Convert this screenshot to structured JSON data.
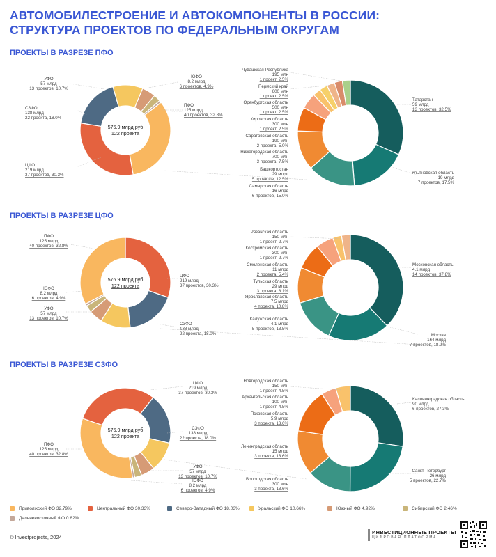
{
  "title_line1": "АВТОМОБИЛЕСТРОЕНИЕ И АВТОКОМПОНЕНТЫ В РОССИИ:",
  "title_line2": "СТРУКТУРА ПРОЕКТОВ ПО ФЕДЕРАЛЬНЫМ ОКРУГАМ",
  "footer": "© Investprojects, 2024",
  "brand": {
    "line1": "ИНВЕСТИЦИОННЫЕ ПРОЕКТЫ",
    "line2": "ЦИФРОВАЯ ПЛАТФОРМА"
  },
  "colors": {
    "pfo": "#f9b75f",
    "cfo": "#e4623f",
    "szfo": "#4e6a84",
    "ufo": "#f5c75f",
    "yufo": "#d69b76",
    "sibfo": "#c9b57a",
    "dfo": "#c4a89a",
    "t1": "#155d5d",
    "t2": "#167a74",
    "t3": "#3a9485",
    "o1": "#f08a32",
    "o2": "#ec6c16",
    "p1": "#f6a27c",
    "p2": "#f9c26b",
    "p3": "#f6d06a",
    "p4": "#efb489",
    "p5": "#d98c6a",
    "g1": "#a9d08a"
  },
  "legend": [
    {
      "label": "Приволжский ФО  32.79%",
      "color": "#f9b75f"
    },
    {
      "label": "Центральный ФО  30.33%",
      "color": "#e4623f"
    },
    {
      "label": "Северо-Западный ФО  18.03%",
      "color": "#4e6a84"
    },
    {
      "label": "Уральский ФО  10.66%",
      "color": "#f5c75f"
    },
    {
      "label": "Южный ФО  4.92%",
      "color": "#d69b76"
    },
    {
      "label": "Сибирский ФО  2.46%",
      "color": "#c9b57a"
    },
    {
      "label": "Дальневосточный ФО  0.82%",
      "color": "#c4a89a"
    }
  ],
  "chart_data": [
    {
      "type": "pie",
      "section_title": "ПРОЕКТЫ В РАЗРЕЗЕ ПФО",
      "center": {
        "line1": "576.9 млрд руб",
        "line2": "122 проекта"
      },
      "slices": [
        {
          "name": "ПФО",
          "amount": "125 млрд",
          "projects": "40 проектов, 32.8%",
          "value": 32.8,
          "color": "#f9b75f"
        },
        {
          "name": "ЦФО",
          "amount": "219 млрд",
          "projects": "37 проектов, 30.3%",
          "value": 30.3,
          "color": "#e4623f"
        },
        {
          "name": "СЗФО",
          "amount": "138 млрд",
          "projects": "22 проекта, 18.0%",
          "value": 18.0,
          "color": "#4e6a84"
        },
        {
          "name": "УФО",
          "amount": "57 млрд",
          "projects": "13 проектов, 10.7%",
          "value": 10.7,
          "color": "#f5c75f"
        },
        {
          "name": "ЮФО",
          "amount": "8.2 млрд",
          "projects": "6 проектов, 4.9%",
          "value": 4.9,
          "color": "#d69b76"
        },
        {
          "name": "СФО",
          "value": 2.5,
          "color": "#c9b57a"
        },
        {
          "name": "ДФО",
          "value": 0.8,
          "color": "#c4a89a"
        }
      ],
      "breakdown": [
        {
          "name": "Татарстан",
          "amount": "59 млрд",
          "projects": "13 проектов, 32.5%",
          "value": 32.5,
          "color": "#155d5d"
        },
        {
          "name": "Ульяновская область",
          "amount": "19 млрд",
          "projects": "7 проектов, 17.5%",
          "value": 17.5,
          "color": "#167a74"
        },
        {
          "name": "Самарская область",
          "amount": "16 млрд",
          "projects": "6 проектов, 15.0%",
          "value": 15.0,
          "color": "#3a9485"
        },
        {
          "name": "Башкортостан",
          "amount": "29 млрд",
          "projects": "5 проектов, 12.5%",
          "value": 12.5,
          "color": "#f08a32"
        },
        {
          "name": "Нижегородская область",
          "amount": "700 млн",
          "projects": "3 проекта, 7.5%",
          "value": 7.5,
          "color": "#ec6c16"
        },
        {
          "name": "Саратовская область",
          "amount": "190 млн",
          "projects": "2 проекта, 5.0%",
          "value": 5.0,
          "color": "#f6a27c"
        },
        {
          "name": "Кировская область",
          "amount": "300 млн",
          "projects": "1 проект, 2.5%",
          "value": 2.5,
          "color": "#f9c26b"
        },
        {
          "name": "Оренбургская область",
          "amount": "500 млн",
          "projects": "1 проект, 2.5%",
          "value": 2.5,
          "color": "#f6d06a"
        },
        {
          "name": "Пермский край",
          "amount": "600 млн",
          "projects": "1 проект, 2.5%",
          "value": 2.5,
          "color": "#efb489"
        },
        {
          "name": "Чувашская Республика",
          "amount": "195 млн",
          "projects": "1 проект, 2.5%",
          "value": 2.5,
          "color": "#d98c6a"
        },
        {
          "name": "",
          "value": 2.5,
          "color": "#a9d08a"
        }
      ]
    },
    {
      "type": "pie",
      "section_title": "ПРОЕКТЫ В РАЗРЕЗЕ ЦФО",
      "center": {
        "line1": "576.9 млрд руб",
        "line2": "122 проекта"
      },
      "slices": [
        {
          "name": "ЦФО",
          "amount": "219 млрд",
          "projects": "37 проектов, 30.3%",
          "value": 30.3,
          "color": "#e4623f"
        },
        {
          "name": "СЗФО",
          "amount": "138 млрд",
          "projects": "22 проекта, 18.0%",
          "value": 18.0,
          "color": "#4e6a84"
        },
        {
          "name": "УФО",
          "amount": "57 млрд",
          "projects": "13 проектов, 10.7%",
          "value": 10.7,
          "color": "#f5c75f"
        },
        {
          "name": "ЮФО",
          "amount": "8.2 млрд",
          "projects": "6 проектов, 4.9%",
          "value": 4.9,
          "color": "#d69b76"
        },
        {
          "name": "СФО",
          "value": 2.5,
          "color": "#c9b57a"
        },
        {
          "name": "ДФО",
          "value": 0.8,
          "color": "#c4a89a"
        },
        {
          "name": "ПФО",
          "amount": "125 млрд",
          "projects": "40 проектов, 32.8%",
          "value": 32.8,
          "color": "#f9b75f"
        }
      ],
      "breakdown": [
        {
          "name": "Московская область",
          "amount": "4.1 млрд",
          "projects": "14 проектов, 37.8%",
          "value": 37.8,
          "color": "#155d5d"
        },
        {
          "name": "Москва",
          "amount": "164 млрд",
          "projects": "7 проектов, 18.9%",
          "value": 18.9,
          "color": "#167a74"
        },
        {
          "name": "Калужская область",
          "amount": "4.1 млрд",
          "projects": "5 проектов, 13.5%",
          "value": 13.5,
          "color": "#3a9485"
        },
        {
          "name": "Ярославская область",
          "amount": "7.5 млрд",
          "projects": "4 проекта, 10.8%",
          "value": 10.8,
          "color": "#f08a32"
        },
        {
          "name": "Тульская область",
          "amount": "29 млрд",
          "projects": "3 проекта, 8.1%",
          "value": 8.1,
          "color": "#ec6c16"
        },
        {
          "name": "Смоленская область",
          "amount": "11 млрд",
          "projects": "2 проекта, 5.4%",
          "value": 5.4,
          "color": "#f6a27c"
        },
        {
          "name": "Костромская область",
          "amount": "300 млн",
          "projects": "1 проект, 2.7%",
          "value": 2.7,
          "color": "#f9c26b"
        },
        {
          "name": "Рязанская область",
          "amount": "150 млн",
          "projects": "1 проект, 2.7%",
          "value": 2.7,
          "color": "#efb489"
        }
      ]
    },
    {
      "type": "pie",
      "section_title": "ПРОЕКТЫ В РАЗРЕЗЕ СЗФО",
      "center": {
        "line1": "576.9 млрд руб",
        "line2": "122 проекта"
      },
      "slices": [
        {
          "name": "СЗФО",
          "amount": "138 млрд",
          "projects": "22 проекта, 18.0%",
          "value": 18.0,
          "color": "#4e6a84"
        },
        {
          "name": "УФО",
          "amount": "57 млрд",
          "projects": "13 проектов, 10.7%",
          "value": 10.7,
          "color": "#f5c75f"
        },
        {
          "name": "ЮФО",
          "amount": "8.2 млрд",
          "projects": "6 проектов, 4.9%",
          "value": 4.9,
          "color": "#d69b76"
        },
        {
          "name": "СФО",
          "value": 2.5,
          "color": "#c9b57a"
        },
        {
          "name": "ДФО",
          "value": 0.8,
          "color": "#c4a89a"
        },
        {
          "name": "ПФО",
          "amount": "125 млрд",
          "projects": "40 проектов, 32.8%",
          "value": 32.8,
          "color": "#f9b75f"
        },
        {
          "name": "ЦФО",
          "amount": "219 млрд",
          "projects": "37 проектов, 30.3%",
          "value": 30.3,
          "color": "#e4623f"
        }
      ],
      "breakdown": [
        {
          "name": "Калининградская область",
          "amount": "90 млрд",
          "projects": "6 проектов, 27.3%",
          "value": 27.3,
          "color": "#155d5d"
        },
        {
          "name": "Санкт-Петербург",
          "amount": "26 млрд",
          "projects": "5 проектов, 22.7%",
          "value": 22.7,
          "color": "#167a74"
        },
        {
          "name": "Вологодская область",
          "amount": "300 млн",
          "projects": "3 проекта, 13.6%",
          "value": 13.6,
          "color": "#3a9485"
        },
        {
          "name": "Ленинградская область",
          "amount": "15 млрд",
          "projects": "3 проекта, 13.6%",
          "value": 13.6,
          "color": "#f08a32"
        },
        {
          "name": "Псковская область",
          "amount": "5.9 млрд",
          "projects": "3 проекта, 13.6%",
          "value": 13.6,
          "color": "#ec6c16"
        },
        {
          "name": "Архангельская область",
          "amount": "100 млн",
          "projects": "1 проект, 4.5%",
          "value": 4.5,
          "color": "#f6a27c"
        },
        {
          "name": "Новгородская область",
          "amount": "150 млн",
          "projects": "1 проект, 4.5%",
          "value": 4.5,
          "color": "#f9c26b"
        }
      ]
    }
  ]
}
